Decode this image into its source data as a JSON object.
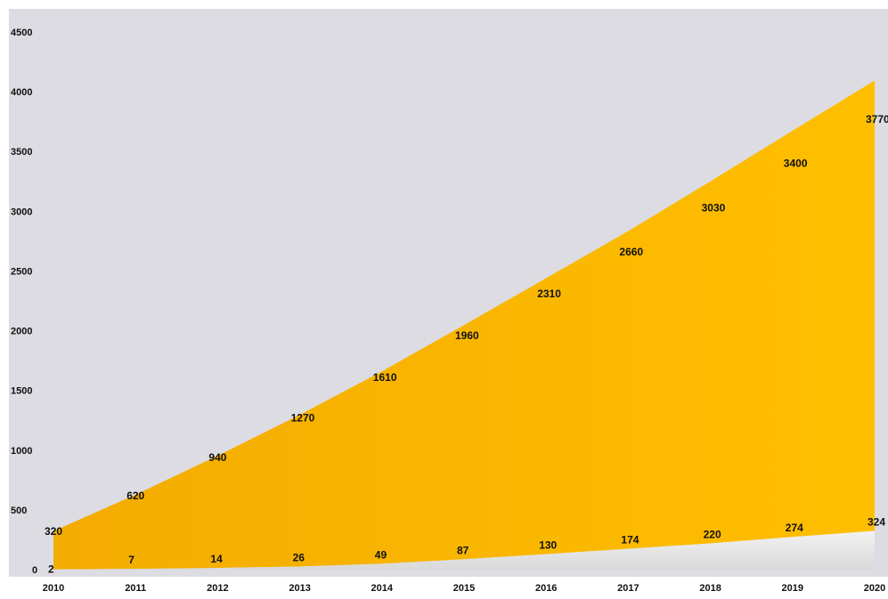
{
  "chart_data": {
    "type": "area",
    "categories": [
      "2010",
      "2011",
      "2012",
      "2013",
      "2014",
      "2015",
      "2016",
      "2017",
      "2018",
      "2019",
      "2020"
    ],
    "series": [
      {
        "values": [
          320,
          620,
          940,
          1270,
          1610,
          1960,
          2310,
          2660,
          3030,
          3400,
          3770
        ],
        "color": "#fbb800"
      },
      {
        "values": [
          2,
          7,
          14,
          26,
          49,
          87,
          130,
          174,
          220,
          274,
          324
        ],
        "color": "#ececec"
      }
    ],
    "ylim": [
      0,
      4500
    ],
    "yticks": [
      0,
      500,
      1000,
      1500,
      2000,
      2500,
      3000,
      3500,
      4000,
      4500
    ],
    "stacked": true,
    "grid": false,
    "background_color": "#dcdce2"
  }
}
